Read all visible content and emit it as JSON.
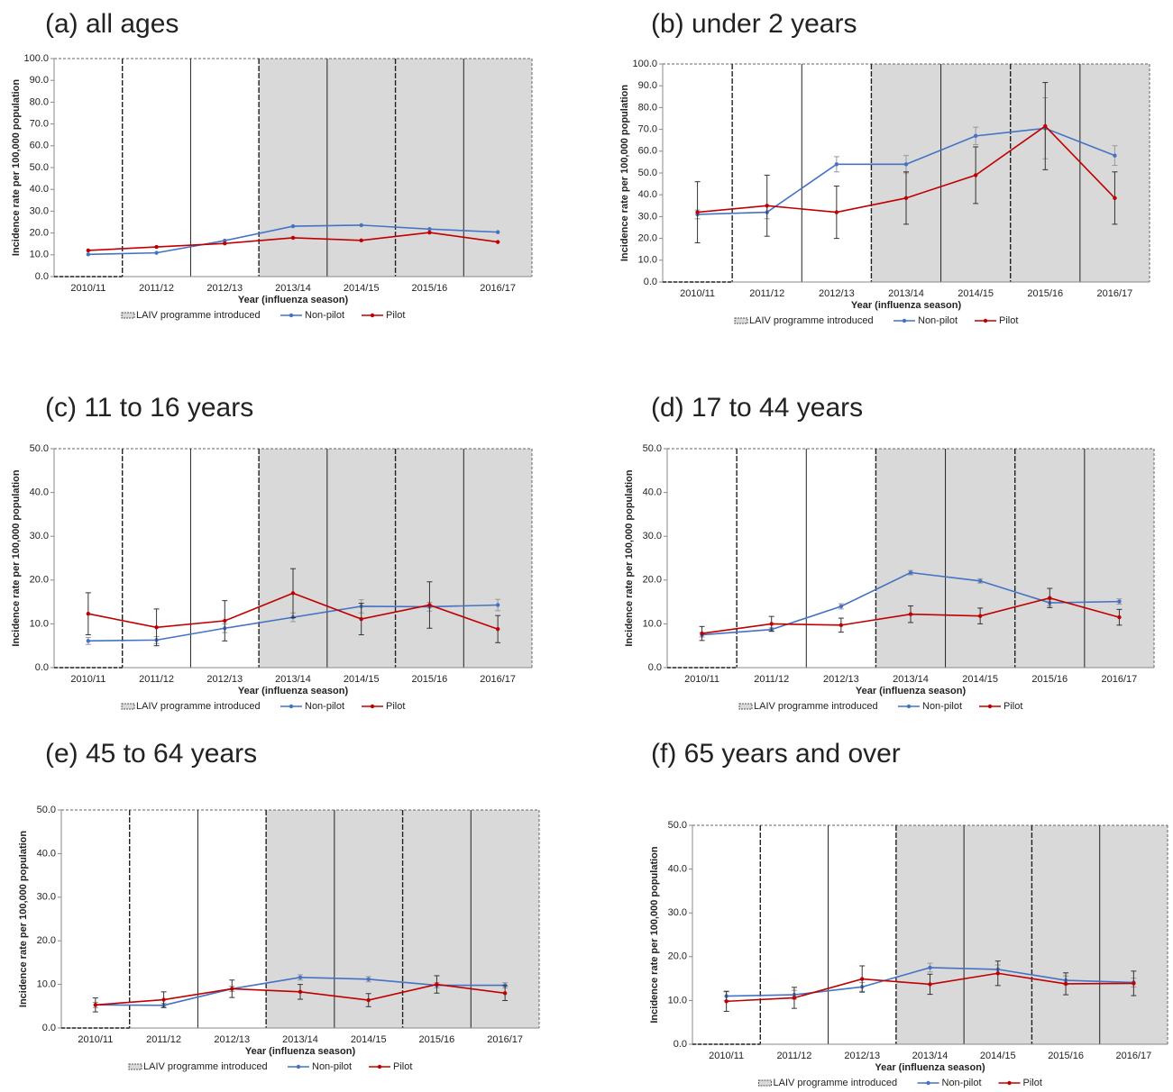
{
  "chart_data": [
    {
      "type": "line",
      "title": "(a) all ages",
      "y_label": "Incidence rate per 100,000 population",
      "x_label": "Year (influenza season)",
      "categories": [
        "2010/11",
        "2011/12",
        "2012/13",
        "2013/14",
        "2014/15",
        "2015/16",
        "2016/17"
      ],
      "shade_label": "LAIV programme introduced",
      "shade_start": 3,
      "ylim": [
        0,
        100
      ],
      "yticks": [
        {
          "value": 0,
          "label": "0.0"
        },
        {
          "value": 10,
          "label": "10.0"
        },
        {
          "value": 20,
          "label": "20.0"
        },
        {
          "value": 30,
          "label": "30.0"
        },
        {
          "value": 40,
          "label": "40.0"
        },
        {
          "value": 50,
          "label": "50.0"
        },
        {
          "value": 60,
          "label": "60.0"
        },
        {
          "value": 70,
          "label": "70.0"
        },
        {
          "value": 80,
          "label": "80.0"
        },
        {
          "value": 90,
          "label": "90.0"
        },
        {
          "value": 100,
          "label": "100.0"
        }
      ],
      "series": [
        {
          "name": "Non-pilot",
          "color": "#4472c4",
          "values": [
            10.2,
            10.9,
            16.5,
            23.1,
            23.6,
            21.8,
            20.4
          ]
        },
        {
          "name": "Pilot",
          "color": "#c00000",
          "values": [
            12.0,
            13.6,
            15.2,
            17.8,
            16.6,
            20.2,
            15.9
          ]
        }
      ]
    },
    {
      "type": "line",
      "title": "(b) under 2 years",
      "y_label": "Incidence rate per 100,000 population",
      "x_label": "Year (influenza season)",
      "categories": [
        "2010/11",
        "2011/12",
        "2012/13",
        "2013/14",
        "2014/15",
        "2015/16",
        "2016/17"
      ],
      "shade_label": "LAIV programme introduced",
      "shade_start": 3,
      "ylim": [
        0,
        100
      ],
      "yticks": [
        {
          "value": 0,
          "label": "0.0"
        },
        {
          "value": 10,
          "label": "10.0"
        },
        {
          "value": 20,
          "label": "20.0"
        },
        {
          "value": 30,
          "label": "30.0"
        },
        {
          "value": 40,
          "label": "40.0"
        },
        {
          "value": 50,
          "label": "50.0"
        },
        {
          "value": 60,
          "label": "60.0"
        },
        {
          "value": 70,
          "label": "70.0"
        },
        {
          "value": 80,
          "label": "80.0"
        },
        {
          "value": 90,
          "label": "90.0"
        },
        {
          "value": 100,
          "label": "100.0"
        }
      ],
      "series": [
        {
          "name": "Non-pilot",
          "color": "#4472c4",
          "values": [
            31,
            32,
            54,
            54,
            67,
            70.5,
            58
          ],
          "errors": [
            2,
            3,
            3.5,
            4,
            4,
            14,
            4.5
          ]
        },
        {
          "name": "Pilot",
          "color": "#c00000",
          "values": [
            32,
            35,
            32,
            38.5,
            49,
            71.5,
            38.5
          ],
          "errors": [
            14,
            14,
            12,
            12,
            13,
            20,
            12
          ]
        }
      ]
    },
    {
      "type": "line",
      "title": "(c) 11 to 16 years",
      "y_label": "Incidence rate per 100,000 population",
      "x_label": "Year (influenza season)",
      "categories": [
        "2010/11",
        "2011/12",
        "2012/13",
        "2013/14",
        "2014/15",
        "2015/16",
        "2016/17"
      ],
      "shade_label": "LAIV programme introduced",
      "shade_start": 3,
      "ylim": [
        0,
        50
      ],
      "yticks": [
        {
          "value": 0,
          "label": "0.0"
        },
        {
          "value": 10,
          "label": "10.0"
        },
        {
          "value": 20,
          "label": "20.0"
        },
        {
          "value": 30,
          "label": "30.0"
        },
        {
          "value": 40,
          "label": "40.0"
        },
        {
          "value": 50,
          "label": "50.0"
        }
      ],
      "series": [
        {
          "name": "Non-pilot",
          "color": "#4472c4",
          "values": [
            6.1,
            6.3,
            9.0,
            11.5,
            14.0,
            13.9,
            14.3
          ],
          "errors": [
            0.8,
            0.8,
            1,
            1,
            1.5,
            1,
            1.3
          ]
        },
        {
          "name": "Pilot",
          "color": "#c00000",
          "values": [
            12.3,
            9.2,
            10.7,
            17.0,
            11.1,
            14.3,
            8.8
          ],
          "errors": [
            4.8,
            4.2,
            4.6,
            5.6,
            3.6,
            5.3,
            3.1
          ]
        }
      ]
    },
    {
      "type": "line",
      "title": "(d) 17 to 44 years",
      "y_label": "Incidence rate per 100,000 population",
      "x_label": "Year (influenza season)",
      "categories": [
        "2010/11",
        "2011/12",
        "2012/13",
        "2013/14",
        "2014/15",
        "2015/16",
        "2016/17"
      ],
      "shade_label": "LAIV programme introduced",
      "shade_start": 3,
      "ylim": [
        0,
        50
      ],
      "yticks": [
        {
          "value": 0,
          "label": "0.0"
        },
        {
          "value": 10,
          "label": "10.0"
        },
        {
          "value": 20,
          "label": "20.0"
        },
        {
          "value": 30,
          "label": "30.0"
        },
        {
          "value": 40,
          "label": "40.0"
        },
        {
          "value": 50,
          "label": "50.0"
        }
      ],
      "series": [
        {
          "name": "Non-pilot",
          "color": "#4472c4",
          "values": [
            7.5,
            8.7,
            14.0,
            21.7,
            19.8,
            14.8,
            15.1
          ],
          "errors": [
            0.5,
            0.4,
            0.6,
            0.5,
            0.5,
            0.7,
            0.6
          ]
        },
        {
          "name": "Pilot",
          "color": "#c00000",
          "values": [
            7.8,
            10.0,
            9.7,
            12.2,
            11.8,
            15.9,
            11.5
          ],
          "errors": [
            1.6,
            1.7,
            1.6,
            1.9,
            1.8,
            2.2,
            1.8
          ]
        }
      ]
    },
    {
      "type": "line",
      "title": "(e) 45 to 64 years",
      "y_label": "Incidence rate per 100,000 population",
      "x_label": "Year (influenza season)",
      "categories": [
        "2010/11",
        "2011/12",
        "2012/13",
        "2013/14",
        "2014/15",
        "2015/16",
        "2016/17"
      ],
      "shade_label": "LAIV programme introduced",
      "shade_start": 3,
      "ylim": [
        0,
        50
      ],
      "yticks": [
        {
          "value": 0,
          "label": "0.0"
        },
        {
          "value": 10,
          "label": "10.0"
        },
        {
          "value": 20,
          "label": "20.0"
        },
        {
          "value": 30,
          "label": "30.0"
        },
        {
          "value": 40,
          "label": "40.0"
        },
        {
          "value": 50,
          "label": "50.0"
        }
      ],
      "series": [
        {
          "name": "Non-pilot",
          "color": "#4472c4",
          "values": [
            5.3,
            5.2,
            9.0,
            11.6,
            11.2,
            9.8,
            9.8
          ],
          "errors": [
            0.6,
            0.5,
            0.6,
            0.6,
            0.6,
            0.6,
            0.6
          ]
        },
        {
          "name": "Pilot",
          "color": "#c00000",
          "values": [
            5.3,
            6.5,
            9.0,
            8.3,
            6.4,
            10.0,
            8.0
          ],
          "errors": [
            1.6,
            1.8,
            2.0,
            1.7,
            1.5,
            2.0,
            1.7
          ]
        }
      ]
    },
    {
      "type": "line",
      "title": "(f) 65 years and over",
      "y_label": "Incidence rate per 100,000 population",
      "x_label": "Year (influenza season)",
      "categories": [
        "2010/11",
        "2011/12",
        "2012/13",
        "2013/14",
        "2014/15",
        "2015/16",
        "2016/17"
      ],
      "shade_label": "LAIV programme introduced",
      "shade_start": 3,
      "ylim": [
        0,
        50
      ],
      "yticks": [
        {
          "value": 0,
          "label": "0.0"
        },
        {
          "value": 10,
          "label": "10.0"
        },
        {
          "value": 20,
          "label": "20.0"
        },
        {
          "value": 30,
          "label": "30.0"
        },
        {
          "value": 40,
          "label": "40.0"
        },
        {
          "value": 50,
          "label": "50.0"
        }
      ],
      "series": [
        {
          "name": "Non-pilot",
          "color": "#4472c4",
          "values": [
            11.0,
            11.3,
            13.1,
            17.5,
            17.1,
            14.6,
            14.1
          ],
          "errors": [
            1,
            1,
            1,
            1,
            1,
            1,
            1
          ]
        },
        {
          "name": "Pilot",
          "color": "#c00000",
          "values": [
            9.8,
            10.6,
            14.9,
            13.7,
            16.2,
            13.8,
            13.9
          ],
          "errors": [
            2.3,
            2.4,
            3,
            2.3,
            2.8,
            2.5,
            2.8
          ]
        }
      ]
    }
  ]
}
